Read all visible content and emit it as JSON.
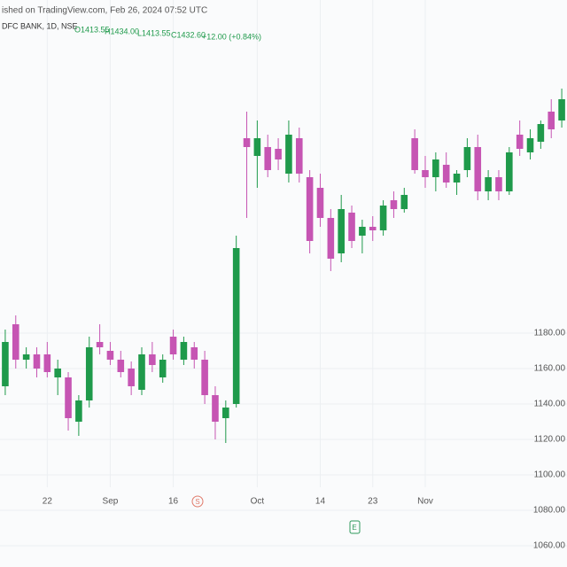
{
  "chart_data": {
    "type": "candlestick",
    "source_note": "ished on TradingView.com, Feb 26, 2024 07:52 UTC",
    "title": "DFC BANK, 1D, NSE",
    "ohlc_label": {
      "open": "O1413.55",
      "high": "H1434.00",
      "low": "L1413.55",
      "close": "C1432.60",
      "change": "+12.00 (+0.84%)"
    },
    "annotations": [
      "S",
      "E"
    ],
    "categories": [
      null,
      null,
      null,
      null,
      "22",
      null,
      null,
      null,
      null,
      null,
      "Sep",
      null,
      null,
      null,
      null,
      null,
      "16",
      null,
      null,
      null,
      null,
      null,
      null,
      null,
      "Oct",
      null,
      null,
      null,
      null,
      null,
      "14",
      null,
      null,
      null,
      null,
      "23",
      null,
      null,
      null,
      null,
      "Nov",
      null,
      null,
      null,
      null,
      null,
      null,
      null,
      null,
      null,
      null,
      null,
      null,
      null
    ],
    "open": [
      1150,
      1185,
      1165,
      1168,
      1168,
      1155,
      1155,
      1130,
      1142,
      1175,
      1170,
      1165,
      1160,
      1148,
      1168,
      1155,
      1178,
      1165,
      1172,
      1165,
      1145,
      1132,
      1140,
      1290,
      1280,
      1285,
      1284,
      1270,
      1290,
      1268,
      1262,
      1245,
      1225,
      1248,
      1235,
      1240,
      1238,
      1255,
      1250,
      1290,
      1272,
      1268,
      1275,
      1265,
      1272,
      1285,
      1260,
      1268,
      1260,
      1292,
      1282,
      1288,
      1305,
      1300
    ],
    "high": [
      1182,
      1190,
      1172,
      1172,
      1175,
      1165,
      1158,
      1145,
      1178,
      1185,
      1175,
      1170,
      1164,
      1172,
      1175,
      1168,
      1182,
      1178,
      1175,
      1170,
      1150,
      1142,
      1235,
      1305,
      1300,
      1292,
      1290,
      1300,
      1296,
      1272,
      1270,
      1250,
      1258,
      1252,
      1244,
      1246,
      1255,
      1260,
      1262,
      1295,
      1280,
      1282,
      1282,
      1272,
      1290,
      1292,
      1272,
      1272,
      1285,
      1300,
      1295,
      1300,
      1312,
      1318
    ],
    "low": [
      1145,
      1160,
      1160,
      1155,
      1155,
      1145,
      1125,
      1122,
      1138,
      1168,
      1162,
      1155,
      1145,
      1145,
      1158,
      1152,
      1165,
      1162,
      1160,
      1140,
      1120,
      1118,
      1138,
      1245,
      1262,
      1268,
      1272,
      1265,
      1265,
      1225,
      1240,
      1215,
      1220,
      1228,
      1225,
      1232,
      1235,
      1245,
      1248,
      1270,
      1262,
      1260,
      1262,
      1258,
      1268,
      1255,
      1255,
      1255,
      1258,
      1280,
      1278,
      1284,
      1290,
      1296
    ],
    "close": [
      1175,
      1165,
      1168,
      1160,
      1158,
      1160,
      1132,
      1142,
      1172,
      1172,
      1165,
      1158,
      1150,
      1168,
      1162,
      1165,
      1168,
      1175,
      1165,
      1145,
      1130,
      1138,
      1228,
      1285,
      1290,
      1272,
      1278,
      1292,
      1270,
      1232,
      1245,
      1222,
      1250,
      1232,
      1240,
      1238,
      1252,
      1250,
      1258,
      1272,
      1268,
      1278,
      1265,
      1270,
      1285,
      1260,
      1268,
      1260,
      1282,
      1284,
      1290,
      1298,
      1295,
      1312
    ],
    "up_color": "#1f9a4b",
    "down_color": "#c655b3",
    "ylim": [
      1048,
      1368
    ],
    "yticks": [
      {
        "value": 1060,
        "label": "1060.00"
      },
      {
        "value": 1080,
        "label": "1080.00"
      },
      {
        "value": 1100,
        "label": "1100.00"
      },
      {
        "value": 1120,
        "label": "1120.00"
      },
      {
        "value": 1140,
        "label": "1140.00"
      },
      {
        "value": 1160,
        "label": "1160.00"
      },
      {
        "value": 1180,
        "label": "1180.00"
      }
    ],
    "grid": true
  }
}
